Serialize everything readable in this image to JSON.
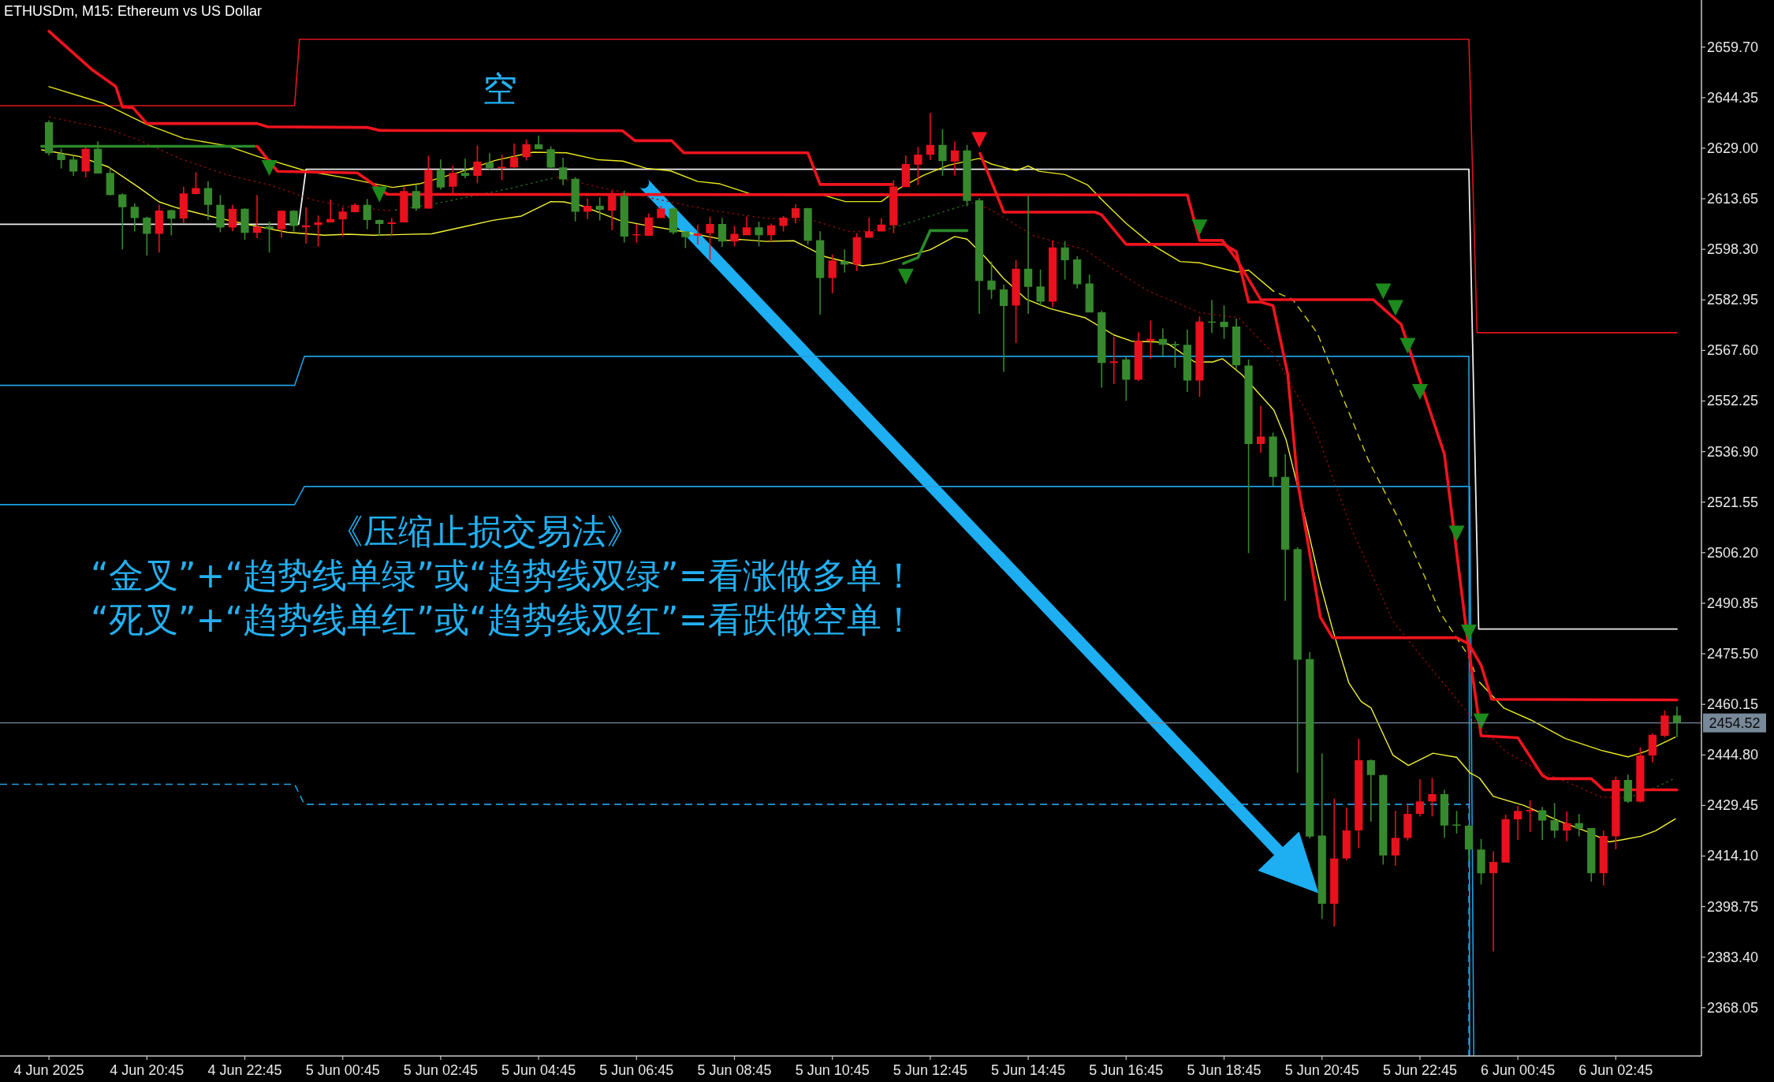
{
  "chart_data": {
    "type": "candlestick",
    "title": "ETHUSDm, M15: Ethereum vs US Dollar",
    "annotations": [
      "空",
      "《压缩止损交易法》",
      "“金叉”+“趋势线单绿”或“趋势线双绿”=看涨做多单！",
      "“死叉”+“趋势线单红”或“趋势线双红”=看跌做空单！"
    ],
    "x": [
      "2025-06-04T18:45",
      "2025-06-04T19:00",
      "2025-06-04T19:15",
      "2025-06-04T19:30",
      "2025-06-04T19:45",
      "2025-06-04T20:00",
      "2025-06-04T20:15",
      "2025-06-04T20:30",
      "2025-06-04T20:45",
      "2025-06-04T21:00",
      "2025-06-04T21:15",
      "2025-06-04T21:30",
      "2025-06-04T21:45",
      "2025-06-04T22:00",
      "2025-06-04T22:15",
      "2025-06-04T22:30",
      "2025-06-04T22:45",
      "2025-06-04T23:00",
      "2025-06-04T23:15",
      "2025-06-04T23:30",
      "2025-06-04T23:45",
      "2025-06-05T00:00",
      "2025-06-05T00:15",
      "2025-06-05T00:30",
      "2025-06-05T00:45",
      "2025-06-05T01:00",
      "2025-06-05T01:15",
      "2025-06-05T01:30",
      "2025-06-05T01:45",
      "2025-06-05T02:00",
      "2025-06-05T02:15",
      "2025-06-05T02:30",
      "2025-06-05T02:45",
      "2025-06-05T03:00",
      "2025-06-05T03:15",
      "2025-06-05T03:30",
      "2025-06-05T03:45",
      "2025-06-05T04:00",
      "2025-06-05T04:15",
      "2025-06-05T04:30",
      "2025-06-05T04:45",
      "2025-06-05T05:00",
      "2025-06-05T05:15",
      "2025-06-05T05:30",
      "2025-06-05T05:45",
      "2025-06-05T06:00",
      "2025-06-05T06:15",
      "2025-06-05T06:30",
      "2025-06-05T06:45",
      "2025-06-05T07:00",
      "2025-06-05T07:15",
      "2025-06-05T07:30",
      "2025-06-05T07:45",
      "2025-06-05T08:00",
      "2025-06-05T08:15",
      "2025-06-05T08:30",
      "2025-06-05T08:45",
      "2025-06-05T09:00",
      "2025-06-05T09:15",
      "2025-06-05T09:30",
      "2025-06-05T09:45",
      "2025-06-05T10:00",
      "2025-06-05T10:15",
      "2025-06-05T10:30",
      "2025-06-05T10:45",
      "2025-06-05T11:00",
      "2025-06-05T11:15",
      "2025-06-05T11:30",
      "2025-06-05T11:45",
      "2025-06-05T12:00",
      "2025-06-05T12:15",
      "2025-06-05T12:30",
      "2025-06-05T12:45",
      "2025-06-05T13:00",
      "2025-06-05T13:15",
      "2025-06-05T13:30",
      "2025-06-05T13:45",
      "2025-06-05T14:00",
      "2025-06-05T14:15",
      "2025-06-05T14:30",
      "2025-06-05T14:45",
      "2025-06-05T15:00",
      "2025-06-05T15:15",
      "2025-06-05T15:30",
      "2025-06-05T15:45",
      "2025-06-05T16:00",
      "2025-06-05T16:15",
      "2025-06-05T16:30",
      "2025-06-05T16:45",
      "2025-06-05T17:00",
      "2025-06-05T17:15",
      "2025-06-05T17:30",
      "2025-06-05T17:45",
      "2025-06-05T18:00",
      "2025-06-05T18:15",
      "2025-06-05T18:30",
      "2025-06-05T18:45",
      "2025-06-05T19:00",
      "2025-06-05T19:15",
      "2025-06-05T19:30",
      "2025-06-05T19:45",
      "2025-06-05T20:00",
      "2025-06-05T20:15",
      "2025-06-05T20:30",
      "2025-06-05T20:45",
      "2025-06-05T21:00",
      "2025-06-05T21:15",
      "2025-06-05T21:30",
      "2025-06-05T21:45",
      "2025-06-05T22:00",
      "2025-06-05T22:15",
      "2025-06-05T22:30",
      "2025-06-05T22:45",
      "2025-06-05T23:00",
      "2025-06-05T23:15",
      "2025-06-05T23:30",
      "2025-06-05T23:45",
      "2025-06-06T00:00",
      "2025-06-06T00:15",
      "2025-06-06T00:30",
      "2025-06-06T00:45",
      "2025-06-06T01:00",
      "2025-06-06T01:15",
      "2025-06-06T01:30",
      "2025-06-06T01:45",
      "2025-06-06T02:00",
      "2025-06-06T02:15",
      "2025-06-06T02:30",
      "2025-06-06T02:45",
      "2025-06-06T03:00",
      "2025-06-06T03:15",
      "2025-06-06T03:30",
      "2025-06-06T03:45",
      "2025-06-06T04:00"
    ],
    "ohlc": [
      [
        2636.9,
        2637.5,
        2626.8,
        2627.5
      ],
      [
        2627.3,
        2628.8,
        2622.8,
        2625.4
      ],
      [
        2625.6,
        2626.7,
        2620.6,
        2621.9
      ],
      [
        2621.9,
        2629.3,
        2620.1,
        2628.8
      ],
      [
        2628.8,
        2631.1,
        2621.3,
        2621.3
      ],
      [
        2621.5,
        2622.8,
        2614.6,
        2614.8
      ],
      [
        2615.0,
        2615.3,
        2598.3,
        2611.1
      ],
      [
        2611.2,
        2612.3,
        2603.7,
        2607.8
      ],
      [
        2607.9,
        2608.2,
        2596.4,
        2603.0
      ],
      [
        2603.0,
        2611.8,
        2597.3,
        2610.1
      ],
      [
        2610.2,
        2610.4,
        2602.6,
        2607.6
      ],
      [
        2607.7,
        2617.3,
        2606.3,
        2615.3
      ],
      [
        2615.1,
        2621.7,
        2615.0,
        2616.9
      ],
      [
        2616.9,
        2619.0,
        2607.2,
        2611.8
      ],
      [
        2611.8,
        2614.8,
        2603.5,
        2604.9
      ],
      [
        2604.9,
        2611.8,
        2603.8,
        2610.6
      ],
      [
        2610.6,
        2610.8,
        2601.2,
        2603.3
      ],
      [
        2603.3,
        2614.8,
        2601.7,
        2605.2
      ],
      [
        2605.3,
        2606.7,
        2597.3,
        2604.5
      ],
      [
        2604.4,
        2610.1,
        2601.8,
        2610.0
      ],
      [
        2610.0,
        2610.2,
        2603.7,
        2605.4
      ],
      [
        2605.0,
        2611.1,
        2600.0,
        2605.6
      ],
      [
        2605.7,
        2608.6,
        2599.1,
        2606.5
      ],
      [
        2606.5,
        2613.4,
        2606.4,
        2607.5
      ],
      [
        2607.4,
        2611.1,
        2602.3,
        2609.8
      ],
      [
        2609.6,
        2612.3,
        2609.5,
        2611.8
      ],
      [
        2611.8,
        2613.6,
        2604.4,
        2607.2
      ],
      [
        2607.2,
        2607.4,
        2602.4,
        2606.0
      ],
      [
        2606.0,
        2607.8,
        2602.3,
        2606.5
      ],
      [
        2606.5,
        2617.3,
        2606.4,
        2616.0
      ],
      [
        2616.0,
        2617.8,
        2610.0,
        2610.7
      ],
      [
        2610.7,
        2626.7,
        2610.6,
        2622.4
      ],
      [
        2622.4,
        2625.6,
        2616.4,
        2617.1
      ],
      [
        2617.3,
        2623.8,
        2615.0,
        2621.5
      ],
      [
        2621.5,
        2625.8,
        2619.9,
        2620.6
      ],
      [
        2620.6,
        2629.9,
        2618.4,
        2624.9
      ],
      [
        2624.7,
        2627.5,
        2622.4,
        2623.0
      ],
      [
        2623.1,
        2627.0,
        2619.3,
        2623.2
      ],
      [
        2623.2,
        2630.4,
        2623.0,
        2626.3
      ],
      [
        2626.3,
        2631.6,
        2625.3,
        2630.2
      ],
      [
        2630.2,
        2632.8,
        2628.7,
        2628.7
      ],
      [
        2628.7,
        2629.6,
        2623.0,
        2623.1
      ],
      [
        2623.2,
        2626.1,
        2617.8,
        2619.5
      ],
      [
        2619.7,
        2620.2,
        2606.8,
        2609.7
      ],
      [
        2609.7,
        2613.7,
        2607.5,
        2611.5
      ],
      [
        2611.5,
        2614.1,
        2607.1,
        2610.3
      ],
      [
        2610.1,
        2616.1,
        2604.1,
        2614.8
      ],
      [
        2614.5,
        2616.1,
        2600.4,
        2602.2
      ],
      [
        2602.6,
        2606.0,
        2600.4,
        2602.8
      ],
      [
        2602.4,
        2609.2,
        2602.4,
        2608.0
      ],
      [
        2607.8,
        2611.5,
        2607.8,
        2610.7
      ],
      [
        2610.7,
        2611.0,
        2602.8,
        2603.4
      ],
      [
        2603.7,
        2603.8,
        2598.7,
        2602.0
      ],
      [
        2602.4,
        2605.8,
        2599.8,
        2603.1
      ],
      [
        2603.2,
        2608.2,
        2595.1,
        2606.0
      ],
      [
        2606.0,
        2607.8,
        2599.0,
        2600.7
      ],
      [
        2600.7,
        2605.4,
        2599.2,
        2603.0
      ],
      [
        2602.6,
        2608.2,
        2602.6,
        2605.0
      ],
      [
        2605.0,
        2606.7,
        2599.2,
        2602.6
      ],
      [
        2602.6,
        2606.1,
        2600.7,
        2605.6
      ],
      [
        2605.4,
        2608.4,
        2603.7,
        2607.9
      ],
      [
        2607.8,
        2612.0,
        2606.2,
        2610.8
      ],
      [
        2610.8,
        2610.9,
        2599.8,
        2600.9
      ],
      [
        2601.1,
        2603.8,
        2578.5,
        2589.6
      ],
      [
        2589.6,
        2596.8,
        2585.0,
        2594.9
      ],
      [
        2594.7,
        2598.3,
        2591.3,
        2593.7
      ],
      [
        2593.7,
        2603.2,
        2591.7,
        2602.0
      ],
      [
        2601.8,
        2608.0,
        2601.8,
        2603.8
      ],
      [
        2603.7,
        2607.8,
        2603.7,
        2605.8
      ],
      [
        2605.6,
        2619.3,
        2603.2,
        2617.4
      ],
      [
        2617.2,
        2626.8,
        2617.2,
        2624.2
      ],
      [
        2624.0,
        2629.4,
        2617.8,
        2627.1
      ],
      [
        2627.0,
        2639.7,
        2625.4,
        2630.0
      ],
      [
        2630.0,
        2634.8,
        2620.6,
        2625.1
      ],
      [
        2625.0,
        2631.0,
        2620.7,
        2628.3
      ],
      [
        2628.3,
        2630.0,
        2611.4,
        2613.0
      ],
      [
        2613.2,
        2613.8,
        2578.7,
        2588.7
      ],
      [
        2588.8,
        2594.6,
        2583.2,
        2586.0
      ],
      [
        2586.1,
        2587.6,
        2561.1,
        2581.1
      ],
      [
        2581.2,
        2595.0,
        2569.9,
        2592.4
      ],
      [
        2592.4,
        2614.6,
        2578.7,
        2586.9
      ],
      [
        2587.0,
        2592.2,
        2581.1,
        2582.4
      ],
      [
        2582.4,
        2601.0,
        2580.8,
        2598.9
      ],
      [
        2598.9,
        2600.8,
        2589.1,
        2595.0
      ],
      [
        2595.2,
        2596.2,
        2586.4,
        2587.7
      ],
      [
        2587.9,
        2590.6,
        2579.1,
        2579.1
      ],
      [
        2579.2,
        2579.7,
        2556.3,
        2563.8
      ],
      [
        2563.8,
        2571.7,
        2557.4,
        2564.3
      ],
      [
        2564.9,
        2565.7,
        2552.3,
        2558.7
      ],
      [
        2558.7,
        2573.1,
        2558.3,
        2570.5
      ],
      [
        2570.5,
        2576.7,
        2565.1,
        2571.1
      ],
      [
        2571.1,
        2574.3,
        2565.9,
        2569.3
      ],
      [
        2569.5,
        2570.3,
        2562.3,
        2569.2
      ],
      [
        2569.3,
        2573.9,
        2555.0,
        2558.5
      ],
      [
        2558.5,
        2577.9,
        2553.5,
        2576.4
      ],
      [
        2576.4,
        2582.9,
        2572.9,
        2576.0
      ],
      [
        2576.3,
        2581.3,
        2571.1,
        2574.7
      ],
      [
        2574.9,
        2577.3,
        2561.9,
        2563.1
      ],
      [
        2563.0,
        2564.9,
        2506.1,
        2539.2
      ],
      [
        2539.2,
        2550.8,
        2536.5,
        2541.5
      ],
      [
        2541.5,
        2542.7,
        2526.5,
        2529.2
      ],
      [
        2529.2,
        2536.1,
        2491.6,
        2507.1
      ],
      [
        2507.3,
        2507.9,
        2439.4,
        2473.7
      ],
      [
        2473.9,
        2476.0,
        2419.5,
        2420.0
      ],
      [
        2420.3,
        2445.3,
        2395.0,
        2399.6
      ],
      [
        2399.6,
        2431.5,
        2392.7,
        2413.4
      ],
      [
        2413.4,
        2428.8,
        2412.8,
        2421.9
      ],
      [
        2421.9,
        2449.7,
        2416.5,
        2443.2
      ],
      [
        2443.2,
        2443.4,
        2424.6,
        2438.7
      ],
      [
        2438.7,
        2438.9,
        2411.5,
        2414.3
      ],
      [
        2414.3,
        2427.8,
        2411.2,
        2419.6
      ],
      [
        2419.6,
        2429.7,
        2418.8,
        2426.9
      ],
      [
        2426.9,
        2437.4,
        2426.1,
        2430.7
      ],
      [
        2430.7,
        2437.8,
        2426.1,
        2432.9
      ],
      [
        2432.9,
        2434.2,
        2419.6,
        2423.4
      ],
      [
        2423.6,
        2427.8,
        2420.9,
        2423.4
      ],
      [
        2423.3,
        2423.6,
        2412.6,
        2416.1
      ],
      [
        2416.1,
        2419.3,
        2405.5,
        2408.9
      ],
      [
        2408.9,
        2415.6,
        2385.1,
        2412.3
      ],
      [
        2412.1,
        2426.6,
        2412.1,
        2425.3
      ],
      [
        2425.2,
        2429.3,
        2419.0,
        2427.8
      ],
      [
        2427.8,
        2431.0,
        2421.4,
        2428.0
      ],
      [
        2428.0,
        2429.0,
        2419.0,
        2424.9
      ],
      [
        2425.0,
        2430.2,
        2419.6,
        2421.8
      ],
      [
        2421.8,
        2427.6,
        2418.6,
        2424.1
      ],
      [
        2424.1,
        2426.9,
        2420.1,
        2422.5
      ],
      [
        2422.6,
        2422.6,
        2406.3,
        2408.9
      ],
      [
        2408.9,
        2421.8,
        2405.2,
        2420.2
      ],
      [
        2420.1,
        2438.2,
        2416.2,
        2437.2
      ],
      [
        2437.2,
        2438.8,
        2430.2,
        2430.6
      ],
      [
        2430.6,
        2447.1,
        2430.4,
        2444.6
      ],
      [
        2444.6,
        2451.4,
        2442.6,
        2450.9
      ],
      [
        2450.6,
        2458.3,
        2450.2,
        2456.8
      ],
      [
        2456.8,
        2459.5,
        2450.2,
        2454.5
      ]
    ],
    "colors": [
      "#37892d",
      "#37892d",
      "#37892d",
      "#e8111d",
      "#37892d",
      "#37892d",
      "#37892d",
      "#37892d",
      "#37892d",
      "#e8111d",
      "#37892d",
      "#e8111d",
      "#e8111d",
      "#37892d",
      "#37892d",
      "#e8111d",
      "#37892d",
      "#e8111d",
      "#37892d",
      "#e8111d",
      "#37892d",
      "#e8111d",
      "#e8111d",
      "#e8111d",
      "#e8111d",
      "#e8111d",
      "#37892d",
      "#37892d",
      "#e8111d",
      "#e8111d",
      "#37892d",
      "#e8111d",
      "#37892d",
      "#e8111d",
      "#37892d",
      "#e8111d",
      "#37892d",
      "#e8111d",
      "#e8111d",
      "#e8111d",
      "#37892d",
      "#37892d",
      "#37892d",
      "#37892d",
      "#e8111d",
      "#37892d",
      "#e8111d",
      "#37892d",
      "#e8111d",
      "#e8111d",
      "#e8111d",
      "#37892d",
      "#37892d",
      "#e8111d",
      "#e8111d",
      "#37892d",
      "#e8111d",
      "#e8111d",
      "#37892d",
      "#e8111d",
      "#e8111d",
      "#e8111d",
      "#37892d",
      "#37892d",
      "#e8111d",
      "#37892d",
      "#e8111d",
      "#e8111d",
      "#e8111d",
      "#e8111d",
      "#e8111d",
      "#e8111d",
      "#e8111d",
      "#37892d",
      "#e8111d",
      "#37892d",
      "#37892d",
      "#37892d",
      "#37892d",
      "#e8111d",
      "#37892d",
      "#37892d",
      "#e8111d",
      "#37892d",
      "#37892d",
      "#37892d",
      "#37892d",
      "#e8111d",
      "#37892d",
      "#e8111d",
      "#e8111d",
      "#37892d",
      "#37892d",
      "#37892d",
      "#e8111d",
      "#37892d",
      "#37892d",
      "#37892d",
      "#37892d",
      "#e8111d",
      "#37892d",
      "#37892d",
      "#37892d",
      "#37892d",
      "#37892d",
      "#e8111d",
      "#e8111d",
      "#e8111d",
      "#37892d",
      "#37892d",
      "#e8111d",
      "#e8111d",
      "#e8111d",
      "#e8111d",
      "#37892d",
      "#37892d",
      "#37892d",
      "#37892d",
      "#e8111d",
      "#e8111d",
      "#e8111d",
      "#e8111d",
      "#37892d",
      "#37892d",
      "#e8111d",
      "#37892d",
      "#37892d",
      "#e8111d",
      "#e8111d",
      "#37892d",
      "#e8111d",
      "#e8111d",
      "#e8111d",
      "#37892d"
    ],
    "xlim": [
      "2025-06-04T17:45",
      "2025-06-06T04:30"
    ],
    "xticks": [
      {
        "value": "2025-06-04T18:45",
        "label": "4 Jun 2025"
      },
      {
        "value": "2025-06-04T20:45",
        "label": "4 Jun 20:45"
      },
      {
        "value": "2025-06-04T22:45",
        "label": "4 Jun 22:45"
      },
      {
        "value": "2025-06-05T00:45",
        "label": "5 Jun 00:45"
      },
      {
        "value": "2025-06-05T02:45",
        "label": "5 Jun 02:45"
      },
      {
        "value": "2025-06-05T04:45",
        "label": "5 Jun 04:45"
      },
      {
        "value": "2025-06-05T06:45",
        "label": "5 Jun 06:45"
      },
      {
        "value": "2025-06-05T08:45",
        "label": "5 Jun 08:45"
      },
      {
        "value": "2025-06-05T10:45",
        "label": "5 Jun 10:45"
      },
      {
        "value": "2025-06-05T12:45",
        "label": "5 Jun 12:45"
      },
      {
        "value": "2025-06-05T14:45",
        "label": "5 Jun 14:45"
      },
      {
        "value": "2025-06-05T16:45",
        "label": "5 Jun 16:45"
      },
      {
        "value": "2025-06-05T18:45",
        "label": "5 Jun 18:45"
      },
      {
        "value": "2025-06-05T20:45",
        "label": "5 Jun 20:45"
      },
      {
        "value": "2025-06-05T22:45",
        "label": "5 Jun 22:45"
      },
      {
        "value": "2025-06-06T00:45",
        "label": "6 Jun 00:45"
      },
      {
        "value": "2025-06-06T02:45",
        "label": "6 Jun 02:45"
      }
    ],
    "ylim": [
      2353.4,
      2674.0
    ],
    "yticks": [
      2368.05,
      {
        "value": 2383.4,
        "label": "2383.40"
      },
      2398.75,
      {
        "value": 2414.1,
        "label": "2414.10"
      },
      2429.45,
      {
        "value": 2444.8,
        "label": "2444.80"
      },
      2460.15,
      {
        "value": 2475.5,
        "label": "2475.50"
      },
      2490.85,
      {
        "value": 2506.2,
        "label": "2506.20"
      },
      2521.55,
      {
        "value": 2536.9,
        "label": "2536.90"
      },
      2552.25,
      {
        "value": 2567.6,
        "label": "2567.60"
      },
      2582.95,
      {
        "value": 2598.3,
        "label": "2598.30"
      },
      2613.65,
      {
        "value": 2629,
        "label": "2629.00"
      },
      2644.35,
      {
        "value": 2659.7,
        "label": "2659.70"
      }
    ],
    "ref_lines": [
      {
        "axis": "y",
        "value": 2454.52,
        "label": "2454.52",
        "color": "#778899"
      }
    ],
    "series": [
      {
        "type": "line",
        "color": "#e0141e",
        "x": [
          "2025-06-04T17:45",
          "2025-06-04T23:46",
          "2025-06-04T23:52",
          "2025-06-05T23:45",
          "2025-06-05T23:55",
          "2025-06-06T04:00"
        ],
        "values": [
          2641.9,
          2641.9,
          2662.1,
          2662.1,
          2573.0,
          2573.0
        ]
      },
      {
        "type": "line",
        "color": "#eeeeee",
        "x": [
          "2025-06-04T17:45",
          "2025-06-04T23:51",
          "2025-06-05T00:00",
          "2025-06-05T23:45",
          "2025-06-05T23:57",
          "2025-06-06T04:00"
        ],
        "values": [
          2605.9,
          2605.9,
          2622.6,
          2622.6,
          2483.0,
          2483.0
        ]
      },
      {
        "type": "line",
        "color": "#1f9fe0",
        "x": [
          "2025-06-04T17:45",
          "2025-06-04T23:46",
          "2025-06-04T23:58",
          "2025-06-05T23:45",
          "2025-06-05T23:46"
        ],
        "values": [
          2557.0,
          2557.0,
          2565.8,
          2565.8,
          2353.4
        ]
      },
      {
        "type": "line",
        "color": "#1f9fe0",
        "x": [
          "2025-06-04T17:45",
          "2025-06-04T23:46",
          "2025-06-04T23:58",
          "2025-06-05T23:46",
          "2025-06-05T23:51"
        ],
        "values": [
          2520.8,
          2520.8,
          2526.3,
          2526.3,
          2353.4
        ]
      },
      {
        "type": "line",
        "color": "#1f9fe0",
        "line_style": "dashed",
        "x": [
          "2025-06-04T17:45",
          "2025-06-04T23:46",
          "2025-06-04T23:58",
          "2025-06-05T23:45",
          "2025-06-05T23:45"
        ],
        "values": [
          2435.9,
          2435.9,
          2429.8,
          2429.8,
          2353.4
        ]
      },
      {
        "type": "line",
        "color": "#e8e81c",
        "x": [
          "2025-06-04T18:45",
          "2025-06-04T19:51",
          "2025-06-04T20:45",
          "2025-06-04T21:30",
          "2025-06-04T22:22",
          "2025-06-04T23:01",
          "2025-06-05T00:00",
          "2025-06-05T00:46",
          "2025-06-05T01:46",
          "2025-06-05T02:19",
          "2025-06-05T03:08",
          "2025-06-05T03:52",
          "2025-06-05T04:38",
          "2025-06-05T05:19",
          "2025-06-05T05:58",
          "2025-06-05T06:28",
          "2025-06-05T06:57",
          "2025-06-05T07:27",
          "2025-06-05T08:00",
          "2025-06-05T08:27",
          "2025-06-05T09:04",
          "2025-06-05T09:58",
          "2025-06-05T10:28",
          "2025-06-05T11:01",
          "2025-06-05T11:45",
          "2025-06-05T12:07",
          "2025-06-05T12:37",
          "2025-06-05T13:07",
          "2025-06-05T13:45",
          "2025-06-05T14:00",
          "2025-06-05T14:30",
          "2025-06-05T14:45",
          "2025-06-05T14:58",
          "2025-06-05T15:30",
          "2025-06-05T15:58",
          "2025-06-05T16:15",
          "2025-06-05T16:45",
          "2025-06-05T17:16",
          "2025-06-05T17:51",
          "2025-06-05T18:15",
          "2025-06-05T19:01",
          "2025-06-05T19:15",
          "2025-06-05T19:46",
          "2025-06-05T21:45",
          "2025-06-05T23:58",
          "2025-06-06T00:28",
          "2025-06-06T01:01",
          "2025-06-06T01:43",
          "2025-06-06T02:27",
          "2025-06-06T03:00",
          "2025-06-06T03:22",
          "2025-06-06T03:58"
        ],
        "values": [
          2647.7,
          2642.7,
          2636.2,
          2632.0,
          2629.8,
          2626.5,
          2622.1,
          2620.1,
          2617.1,
          2618.2,
          2621.7,
          2625.3,
          2627.8,
          2627.6,
          2625.5,
          2625.1,
          2622.9,
          2622.1,
          2618.9,
          2618.2,
          2615.2,
          2614.8,
          2615.2,
          2612.8,
          2612.8,
          2616.8,
          2620.8,
          2623.8,
          2625.9,
          2624.2,
          2622.2,
          2623.6,
          2622.0,
          2621.0,
          2617.8,
          2613.4,
          2606.2,
          2599.8,
          2594.6,
          2594.2,
          2591.4,
          2592.0,
          2585.5,
          null,
          2466.9,
          2459.0,
          2455.4,
          2449.8,
          2446.2,
          2444.2,
          2445.9,
          2450.2
        ]
      },
      {
        "type": "line",
        "color": "#cfcf10",
        "line_style": "dashed",
        "x": [
          "2025-06-05T19:52",
          "2025-06-05T20:09",
          "2025-06-05T20:39",
          "2025-06-05T21:13",
          "2025-06-05T21:42",
          "2025-06-05T22:21",
          "2025-06-05T22:46",
          "2025-06-05T23:10",
          "2025-06-05T23:45",
          "2025-06-05T23:52"
        ],
        "values": [
          2584.9,
          2583.1,
          2573.0,
          2551.8,
          2534.2,
          2515.4,
          2501.7,
          2487.9,
          2474.7,
          2470.0
        ]
      },
      {
        "type": "line",
        "color": "#f2f236",
        "x": [
          "2025-06-04T18:36",
          "2025-06-04T19:22",
          "2025-06-04T19:58",
          "2025-06-04T20:34",
          "2025-06-04T21:00",
          "2025-06-04T21:22",
          "2025-06-04T22:07",
          "2025-06-04T22:53",
          "2025-06-04T23:37",
          "2025-06-05T00:22",
          "2025-06-05T00:52",
          "2025-06-05T01:22",
          "2025-06-05T02:34",
          "2025-06-05T03:18",
          "2025-06-05T03:49",
          "2025-06-05T04:24",
          "2025-06-05T05:00",
          "2025-06-05T05:16",
          "2025-06-05T05:37",
          "2025-06-05T06:24",
          "2025-06-05T06:52",
          "2025-06-05T07:37",
          "2025-06-05T08:37",
          "2025-06-05T08:52",
          "2025-06-05T09:24",
          "2025-06-05T09:58",
          "2025-06-05T10:37",
          "2025-06-05T11:22",
          "2025-06-05T11:45",
          "2025-06-05T12:45",
          "2025-06-05T13:15",
          "2025-06-05T13:30",
          "2025-06-05T13:52",
          "2025-06-05T14:15",
          "2025-06-05T14:43",
          "2025-06-05T15:12",
          "2025-06-05T15:55",
          "2025-06-05T16:30",
          "2025-06-05T16:52",
          "2025-06-05T17:22",
          "2025-06-05T17:37",
          "2025-06-05T18:09",
          "2025-06-05T18:31",
          "2025-06-05T18:43",
          "2025-06-05T19:07",
          "2025-06-05T19:46",
          "2025-06-05T20:01",
          "2025-06-05T20:16",
          "2025-06-05T20:28",
          "2025-06-05T20:43",
          "2025-06-05T20:58",
          "2025-06-05T21:18",
          "2025-06-05T21:33",
          "2025-06-05T21:45",
          "2025-06-05T22:12",
          "2025-06-05T22:31",
          "2025-06-05T23:01",
          "2025-06-05T23:30",
          "2025-06-05T23:46",
          "2025-06-05T23:58",
          "2025-06-06T00:10",
          "2025-06-06T00:15",
          "2025-06-06T00:52",
          "2025-06-06T01:37",
          "2025-06-06T02:07",
          "2025-06-06T02:37",
          "2025-06-06T02:52",
          "2025-06-06T03:16",
          "2025-06-06T03:34",
          "2025-06-06T03:58"
        ],
        "values": [
          2628.5,
          2626.5,
          2623.3,
          2617.3,
          2612.7,
          2610.9,
          2608.1,
          2605.6,
          2603.5,
          2602.6,
          2602.9,
          2602.6,
          2603.0,
          2605.4,
          2607.1,
          2608.4,
          2612.8,
          2612.7,
          2611.6,
          2607.1,
          2605.8,
          2603.9,
          2601.0,
          2601.3,
          2600.7,
          2600.9,
          2596.0,
          2593.3,
          2594.0,
          2598.2,
          2602.2,
          2601.4,
          2596.0,
          2589.4,
          2583.1,
          2580.3,
          2577.5,
          2572.3,
          2570.4,
          2570.2,
          2569.5,
          2564.1,
          2564.1,
          2565.1,
          2560.2,
          2549.5,
          2540.5,
          2525.5,
          2512.9,
          2496.7,
          2482.9,
          2466.6,
          2461.0,
          2459.1,
          2444.7,
          2441.6,
          2445.3,
          2444.1,
          2439.4,
          2437.8,
          2433.8,
          2432.2,
          2429.5,
          2424.6,
          2421.8,
          2418.4,
          2419.0,
          2420.1,
          2421.8,
          2425.4
        ]
      },
      {
        "type": "line",
        "color": "#8b0a0a",
        "line_style": "dotted",
        "x": [
          "2025-06-04T18:45",
          "2025-06-04T19:58",
          "2025-06-04T20:34",
          "2025-06-04T21:28",
          "2025-06-04T22:22",
          "2025-06-04T23:16",
          "2025-06-05T00:10",
          "2025-06-05T00:52",
          "2025-06-05T01:46",
          "2025-06-05T03:00",
          "2025-06-05T05:07",
          "2025-06-05T06:04",
          "2025-06-05T07:10",
          "2025-06-05T08:18",
          "2025-06-05T09:24",
          "2025-06-05T10:22",
          "2025-06-05T11:07",
          "2025-06-05T11:52",
          "2025-06-05T12:30",
          "2025-06-05T13:39",
          "2025-06-05T14:00",
          "2025-06-05T14:52",
          "2025-06-05T15:22",
          "2025-06-05T15:55",
          "2025-06-05T16:27",
          "2025-06-05T17:13",
          "2025-06-05T17:45",
          "2025-06-05T18:15",
          "2025-06-05T19:03",
          "2025-06-05T19:45",
          "2025-06-05T20:34",
          "2025-06-05T21:22",
          "2025-06-05T22:12",
          "2025-06-05T23:01",
          "2025-06-05T23:49",
          "2025-06-06T00:30",
          "2025-06-06T01:16",
          "2025-06-06T01:49",
          "2025-06-06T02:27",
          "2025-06-06T02:52"
        ],
        "values": [
          2638.5,
          2634.8,
          2631.6,
          2625.6,
          2621.0,
          2617.8,
          2613.2,
          2611.2,
          2610.0,
          null,
          2620.2,
          2616.9,
          2613.5,
          2610.1,
          2607.7,
          2607.0,
          2603.6,
          2604.3,
          null,
          2612.3,
          2610.2,
          2602.4,
          2600.3,
          2598.2,
          2592.6,
          2585.5,
          2582.3,
          2579.1,
          2577.5,
          2566.8,
          2545.5,
          2512.9,
          2485.4,
          2470.4,
          2456.0,
          2445.8,
          2439.4,
          2436.2,
          2432.0,
          2431.7
        ]
      },
      {
        "type": "line",
        "color": "#1f6b1f",
        "line_style": "dotted",
        "x": [
          "2025-06-05T01:49",
          "2025-06-05T02:37",
          "2025-06-05T04:12",
          "2025-06-05T05:04",
          "2025-06-05T08:00",
          "2025-06-05T11:54",
          "2025-06-05T12:16",
          "2025-06-05T13:37",
          "2025-06-06T00:00",
          "2025-06-06T02:54",
          "2025-06-06T03:07",
          "2025-06-06T03:31",
          "2025-06-06T03:58"
        ],
        "values": [
          2610.2,
          2612.1,
          2616.9,
          2620.0,
          null,
          2604.5,
          2606.2,
          2612.5,
          null,
          2431.8,
          2432.4,
          2434.6,
          2437.8
        ]
      },
      {
        "type": "line",
        "color": "#f0141e",
        "x": [
          "2025-06-04T18:45",
          "2025-06-04T19:37",
          "2025-06-04T20:07",
          "2025-06-04T20:15",
          "2025-06-04T20:28",
          "2025-06-04T20:45",
          "2025-06-04T23:00",
          "2025-06-04T23:13",
          "2025-06-05T01:15",
          "2025-06-05T01:31",
          "2025-06-05T06:28",
          "2025-06-05T06:43",
          "2025-06-05T07:28",
          "2025-06-05T07:43",
          "2025-06-05T10:15",
          "2025-06-05T10:30",
          "2025-06-05T11:58",
          "2025-06-05T12:45",
          "2025-06-05T13:46",
          "2025-06-05T14:15",
          "2025-06-05T16:07",
          "2025-06-05T16:15",
          "2025-06-05T16:45",
          "2025-06-05T18:45",
          "2025-06-05T19:00",
          "2025-06-05T19:15",
          "2025-06-05T19:30",
          "2025-06-05T19:45",
          "2025-06-05T20:03",
          "2025-06-05T20:15",
          "2025-06-05T20:43",
          "2025-06-05T20:58",
          "2025-06-05T23:30",
          "2025-06-05T23:45",
          "2025-06-06T00:00",
          "2025-06-06T00:13",
          "2025-06-06T04:00"
        ],
        "values": [
          2664.5,
          2653.0,
          2647.7,
          2641.5,
          2641.3,
          2636.5,
          2636.5,
          2635.5,
          2635.3,
          2634.4,
          2634.3,
          2631.3,
          2631.3,
          2627.6,
          2627.6,
          2618.0,
          2618.0,
          null,
          2627.4,
          2609.6,
          2609.6,
          2608.8,
          2599.8,
          2599.8,
          2597.6,
          2582.3,
          2582.3,
          2581.2,
          2560.5,
          2528.0,
          2486.6,
          2480.4,
          2480.4,
          2478.5,
          2472.0,
          2461.7,
          2461.5
        ]
      },
      {
        "type": "line",
        "color": "#2a8a2a",
        "x": [
          "2025-06-05T12:12",
          "2025-06-05T12:30",
          "2025-06-05T12:45",
          "2025-06-05T13:30"
        ],
        "values": [
          2594.0,
          2595.8,
          2604.0,
          2604.0
        ]
      },
      {
        "type": "line",
        "color": "#2a8a2a",
        "x": [
          "2025-06-04T18:36",
          "2025-06-04T22:57"
        ],
        "values": [
          2629.6,
          2629.6
        ]
      },
      {
        "type": "line",
        "color": "#f0141e",
        "x": [
          "2025-06-04T23:00",
          "2025-06-04T23:25",
          "2025-06-05T01:03",
          "2025-06-05T01:40",
          "2025-06-05T18:00",
          "2025-06-05T18:15",
          "2025-06-05T18:43",
          "2025-06-05T19:01",
          "2025-06-05T19:30",
          "2025-06-05T21:48",
          "2025-06-05T22:22",
          "2025-06-05T23:15",
          "2025-06-05T23:45",
          "2025-06-06T00:00",
          "2025-06-06T00:45",
          "2025-06-06T01:15",
          "2025-06-06T01:22",
          "2025-06-06T02:15",
          "2025-06-06T02:30",
          "2025-06-06T04:00"
        ],
        "values": [
          2629.6,
          2622.0,
          2621.5,
          2615.0,
          2614.8,
          2601.0,
          2601.0,
          2595.0,
          2583.0,
          2583.0,
          2575.5,
          2536.1,
          2476.6,
          2450.6,
          2450.0,
          2438.6,
          2437.6,
          2437.6,
          2434.2,
          2434.2
        ]
      },
      {
        "type": "scatter",
        "color": "#1c8a1c",
        "marker": "triangle",
        "x": [
          "2025-06-04T23:15",
          "2025-06-05T01:30",
          "2025-06-05T12:15",
          "2025-06-05T18:15",
          "2025-06-05T22:00",
          "2025-06-05T22:15",
          "2025-06-05T22:30",
          "2025-06-05T22:45",
          "2025-06-05T23:30",
          "2025-06-05T23:45",
          "2025-06-06T00:00"
        ],
        "values": [
          2623.0,
          2615.0,
          2590.0,
          2605.0,
          2585.5,
          2580.5,
          2569.0,
          2555.0,
          2512.0,
          2482.0,
          2455.0
        ]
      },
      {
        "type": "scatter",
        "color": "#f0141e",
        "marker": "triangle",
        "x": [
          "2025-06-05T13:45"
        ],
        "values": [
          2631.5
        ]
      }
    ]
  }
}
